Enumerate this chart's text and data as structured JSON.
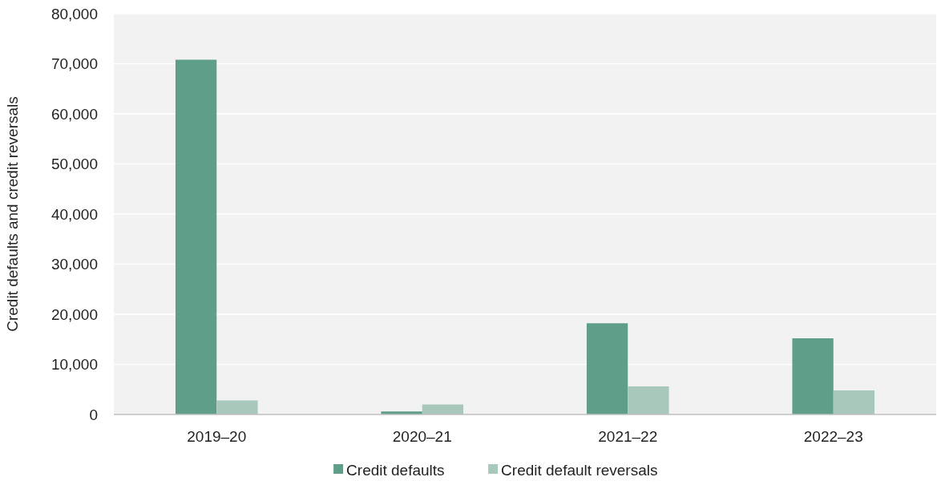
{
  "chart_data": {
    "type": "bar",
    "ylabel": "Credit defaults and credit reversals",
    "categories": [
      "2019–20",
      "2020–21",
      "2021–22",
      "2022–23"
    ],
    "series": [
      {
        "name": "Credit defaults",
        "color": "#5f9e88",
        "values": [
          70800,
          600,
          18200,
          15200
        ]
      },
      {
        "name": "Credit default reversals",
        "color": "#a8c8bc",
        "values": [
          2800,
          2000,
          5600,
          4800
        ]
      }
    ],
    "ylim": [
      0,
      80000
    ],
    "yticks": [
      {
        "value": 0,
        "label": "0"
      },
      {
        "value": 10000,
        "label": "10,000"
      },
      {
        "value": 20000,
        "label": "20,000"
      },
      {
        "value": 30000,
        "label": "30,000"
      },
      {
        "value": 40000,
        "label": "40,000"
      },
      {
        "value": 50000,
        "label": "50,000"
      },
      {
        "value": 60000,
        "label": "60,000"
      },
      {
        "value": 70000,
        "label": "70,000"
      },
      {
        "value": 80000,
        "label": "80,000"
      }
    ],
    "grid": "y",
    "legend": "bottom"
  }
}
